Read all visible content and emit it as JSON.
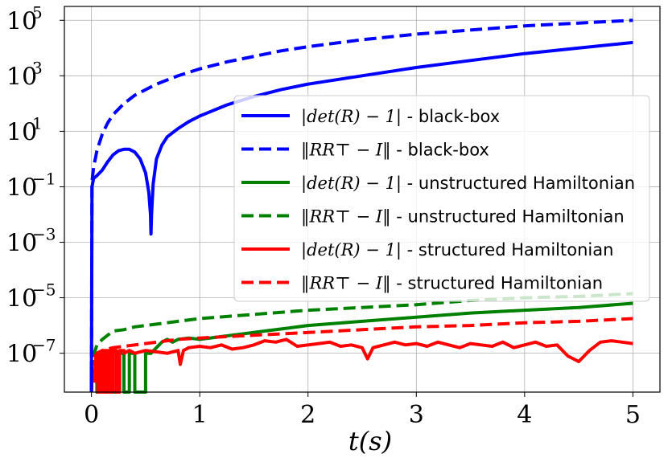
{
  "chart_data": {
    "type": "line",
    "title": "",
    "xlabel": "t(s)",
    "ylabel": "",
    "xlim": [
      -0.25,
      5.25
    ],
    "ylim_log10": [
      -8.4,
      5.5
    ],
    "yscale": "log",
    "grid": true,
    "legend_placement": "center-right",
    "x_ticks": [
      {
        "value": 0,
        "label": "0"
      },
      {
        "value": 1,
        "label": "1"
      },
      {
        "value": 2,
        "label": "2"
      },
      {
        "value": 3,
        "label": "3"
      },
      {
        "value": 4,
        "label": "4"
      },
      {
        "value": 5,
        "label": "5"
      }
    ],
    "y_ticks": [
      {
        "exp": 5,
        "base": "10",
        "power": "5"
      },
      {
        "exp": 3,
        "base": "10",
        "power": "3"
      },
      {
        "exp": 1,
        "base": "10",
        "power": "1"
      },
      {
        "exp": -1,
        "base": "10",
        "power": "−1"
      },
      {
        "exp": -3,
        "base": "10",
        "power": "−3"
      },
      {
        "exp": -5,
        "base": "10",
        "power": "−5"
      },
      {
        "exp": -7,
        "base": "10",
        "power": "−7"
      }
    ],
    "series": [
      {
        "name": "bb-det",
        "legend_math": "|det(R) − 1|",
        "legend_suffix": " - black-box",
        "color": "#0000ff",
        "style": "solid",
        "x": [
          0.0,
          0.005,
          0.02,
          0.05,
          0.1,
          0.15,
          0.2,
          0.25,
          0.3,
          0.35,
          0.4,
          0.45,
          0.5,
          0.53,
          0.545,
          0.55,
          0.555,
          0.57,
          0.6,
          0.65,
          0.7,
          0.8,
          0.9,
          1.0,
          1.25,
          1.5,
          1.75,
          2.0,
          2.5,
          3.0,
          3.5,
          4.0,
          4.5,
          5.0
        ],
        "log10_y": [
          -8.4,
          -1.0,
          -0.7,
          -0.6,
          -0.4,
          -0.1,
          0.15,
          0.3,
          0.35,
          0.35,
          0.25,
          0.0,
          -0.5,
          -1.2,
          -2.0,
          -2.7,
          -2.0,
          -0.9,
          0.0,
          0.5,
          0.8,
          1.1,
          1.35,
          1.55,
          1.95,
          2.25,
          2.5,
          2.7,
          3.0,
          3.3,
          3.55,
          3.8,
          4.0,
          4.2
        ]
      },
      {
        "name": "bb-orth",
        "legend_math": "‖RR⊤ − I‖",
        "legend_suffix": " - black-box",
        "color": "#0000ff",
        "style": "dashed",
        "x": [
          0.0,
          0.005,
          0.02,
          0.05,
          0.1,
          0.15,
          0.2,
          0.3,
          0.4,
          0.5,
          0.6,
          0.8,
          1.0,
          1.25,
          1.5,
          1.75,
          2.0,
          2.5,
          3.0,
          3.5,
          4.0,
          4.5,
          5.0
        ],
        "log10_y": [
          -8.4,
          -0.8,
          -0.3,
          0.3,
          0.9,
          1.3,
          1.6,
          2.0,
          2.3,
          2.5,
          2.7,
          3.0,
          3.25,
          3.5,
          3.7,
          3.9,
          4.05,
          4.3,
          4.5,
          4.65,
          4.8,
          4.9,
          5.0
        ]
      },
      {
        "name": "uh-det",
        "legend_math": "|det(R) − 1|",
        "legend_suffix": " - unstructured Hamiltonian",
        "color": "#008000",
        "style": "solid",
        "x": [
          0.0,
          0.0,
          0.03,
          0.05,
          0.05,
          0.08,
          0.08,
          0.13,
          0.13,
          0.16,
          0.16,
          0.2,
          0.2,
          0.26,
          0.26,
          0.3,
          0.3,
          0.35,
          0.35,
          0.4,
          0.4,
          0.5,
          0.5,
          0.55,
          0.6,
          0.65,
          0.7,
          0.75,
          0.8,
          0.9,
          1.0,
          1.2,
          1.4,
          1.6,
          1.8,
          2.0,
          2.5,
          3.0,
          3.5,
          4.0,
          4.5,
          5.0
        ],
        "log10_y": [
          -8.4,
          -7.3,
          -7.3,
          -7.3,
          -8.4,
          -8.4,
          -7.0,
          -7.0,
          -8.4,
          -8.4,
          -7.0,
          -7.0,
          -8.4,
          -8.4,
          -7.0,
          -7.0,
          -8.4,
          -8.4,
          -7.0,
          -7.0,
          -8.4,
          -8.4,
          -7.0,
          -7.0,
          -6.8,
          -6.6,
          -6.5,
          -6.6,
          -6.5,
          -6.45,
          -6.5,
          -6.4,
          -6.3,
          -6.2,
          -6.1,
          -6.0,
          -5.85,
          -5.7,
          -5.55,
          -5.45,
          -5.35,
          -5.2
        ]
      },
      {
        "name": "uh-orth",
        "legend_math": "‖RR⊤ − I‖",
        "legend_suffix": " - unstructured Hamiltonian",
        "color": "#008000",
        "style": "dashed",
        "x": [
          0.0,
          0.01,
          0.05,
          0.1,
          0.15,
          0.2,
          0.3,
          0.4,
          0.5,
          0.6,
          0.7,
          0.8,
          1.0,
          1.5,
          2.0,
          2.5,
          3.0,
          3.5,
          4.0,
          4.5,
          5.0
        ],
        "log10_y": [
          -8.4,
          -7.2,
          -6.7,
          -6.5,
          -6.35,
          -6.2,
          -6.15,
          -6.05,
          -6.0,
          -5.95,
          -5.9,
          -5.85,
          -5.75,
          -5.6,
          -5.45,
          -5.35,
          -5.25,
          -5.1,
          -5.0,
          -4.95,
          -4.85
        ]
      },
      {
        "name": "sh-det",
        "legend_math": "|det(R) − 1|",
        "legend_suffix": " - structured Hamiltonian",
        "color": "#ff0000",
        "style": "solid",
        "x": [
          0.0,
          0.0,
          0.02,
          0.02,
          0.04,
          0.04,
          0.06,
          0.06,
          0.08,
          0.08,
          0.1,
          0.1,
          0.12,
          0.12,
          0.14,
          0.14,
          0.16,
          0.16,
          0.18,
          0.18,
          0.2,
          0.2,
          0.23,
          0.23,
          0.26,
          0.26,
          0.3,
          0.3,
          0.35,
          0.4,
          0.5,
          0.6,
          0.7,
          0.8,
          0.82,
          0.85,
          0.9,
          1.0,
          1.1,
          1.2,
          1.3,
          1.4,
          1.5,
          1.6,
          1.7,
          1.8,
          1.9,
          2.0,
          2.1,
          2.2,
          2.3,
          2.4,
          2.5,
          2.55,
          2.6,
          2.65,
          2.7,
          2.8,
          2.9,
          3.0,
          3.1,
          3.2,
          3.3,
          3.4,
          3.5,
          3.6,
          3.7,
          3.8,
          3.9,
          4.0,
          4.1,
          4.2,
          4.3,
          4.4,
          4.5,
          4.6,
          4.7,
          4.8,
          4.9,
          5.0
        ],
        "log10_y": [
          -8.4,
          -7.6,
          -7.6,
          -8.0,
          -8.0,
          -7.1,
          -7.1,
          -8.4,
          -8.4,
          -7.0,
          -7.0,
          -8.4,
          -8.4,
          -6.9,
          -6.9,
          -8.4,
          -8.4,
          -6.9,
          -6.9,
          -8.4,
          -8.4,
          -6.9,
          -6.9,
          -8.4,
          -8.4,
          -6.9,
          -6.9,
          -7.0,
          -6.9,
          -7.0,
          -6.9,
          -6.95,
          -7.0,
          -6.9,
          -7.4,
          -6.9,
          -6.8,
          -6.75,
          -6.8,
          -6.7,
          -6.85,
          -6.8,
          -6.7,
          -6.55,
          -6.6,
          -6.5,
          -6.75,
          -6.7,
          -6.65,
          -6.6,
          -6.75,
          -6.7,
          -6.8,
          -7.2,
          -6.8,
          -6.75,
          -6.7,
          -6.6,
          -6.7,
          -6.65,
          -6.75,
          -6.6,
          -6.7,
          -6.8,
          -6.65,
          -6.7,
          -6.75,
          -6.6,
          -6.8,
          -6.7,
          -6.6,
          -6.75,
          -6.7,
          -7.1,
          -7.3,
          -6.9,
          -6.6,
          -6.55,
          -6.6,
          -6.65
        ]
      },
      {
        "name": "sh-orth",
        "legend_math": "‖RR⊤ − I‖",
        "legend_suffix": " - structured Hamiltonian",
        "color": "#ff0000",
        "style": "dashed",
        "x": [
          0.0,
          0.01,
          0.05,
          0.1,
          0.2,
          0.3,
          0.4,
          0.5,
          0.6,
          0.7,
          0.8,
          1.0,
          1.5,
          2.0,
          2.5,
          3.0,
          3.5,
          4.0,
          4.5,
          5.0
        ],
        "log10_y": [
          -8.4,
          -7.3,
          -7.0,
          -6.9,
          -6.8,
          -6.75,
          -6.7,
          -6.65,
          -6.6,
          -6.55,
          -6.5,
          -6.45,
          -6.35,
          -6.25,
          -6.15,
          -6.05,
          -6.0,
          -5.9,
          -5.85,
          -5.75
        ]
      }
    ]
  }
}
